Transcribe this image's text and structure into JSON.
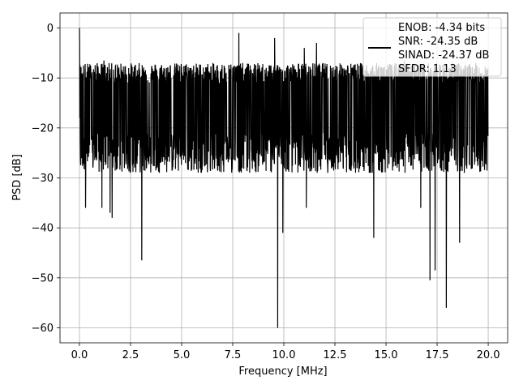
{
  "chart_data": {
    "type": "line",
    "xlabel": "Frequency [MHz]",
    "ylabel": "PSD [dB]",
    "xlim": [
      -0.95,
      20.95
    ],
    "ylim": [
      -63,
      3
    ],
    "x_ticks": [
      0.0,
      2.5,
      5.0,
      7.5,
      10.0,
      12.5,
      15.0,
      17.5,
      20.0
    ],
    "x_tick_labels": [
      "0.0",
      "2.5",
      "5.0",
      "7.5",
      "10.0",
      "12.5",
      "15.0",
      "17.5",
      "20.0"
    ],
    "y_ticks": [
      0,
      -10,
      -20,
      -30,
      -40,
      -50,
      -60
    ],
    "y_tick_labels": [
      "0",
      "−10",
      "−20",
      "−30",
      "−40",
      "−50",
      "−60"
    ],
    "grid": true,
    "legend_position": "top-right",
    "legend_entries": [
      "ENOB: -4.34 bits",
      "SNR: -24.35 dB",
      "SINAD: -24.37 dB",
      "SFDR: 1.13"
    ],
    "series": [
      {
        "color": "#000000",
        "description_points": "noise-floor PSD spanning 0 to 20 MHz",
        "x_range": [
          0.0,
          20.0
        ],
        "band_top": -8.5,
        "band_bottom": -27,
        "peak_at_dc": 0,
        "notable_dips": [
          [
            0.3,
            -36
          ],
          [
            1.1,
            -36
          ],
          [
            1.5,
            -37
          ],
          [
            1.6,
            -38
          ],
          [
            3.05,
            -46.5
          ],
          [
            9.7,
            -60
          ],
          [
            9.95,
            -41
          ],
          [
            11.1,
            -36
          ],
          [
            14.4,
            -42
          ],
          [
            16.7,
            -36
          ],
          [
            17.15,
            -50.5
          ],
          [
            17.4,
            -48.5
          ],
          [
            17.95,
            -56
          ],
          [
            18.6,
            -43
          ]
        ],
        "notable_peaks": [
          [
            0.0,
            0
          ],
          [
            1.2,
            -6.5
          ],
          [
            7.8,
            -1
          ],
          [
            9.55,
            -2
          ],
          [
            11.0,
            -4
          ],
          [
            11.6,
            -3
          ],
          [
            15.9,
            -6.5
          ]
        ]
      }
    ]
  },
  "legend": {
    "line1": "ENOB: -4.34 bits",
    "line2": "SNR: -24.35 dB",
    "line3": "SINAD: -24.37 dB",
    "line4": "SFDR: 1.13"
  },
  "axes": {
    "xlabel": "Frequency [MHz]",
    "ylabel": "PSD [dB]"
  }
}
